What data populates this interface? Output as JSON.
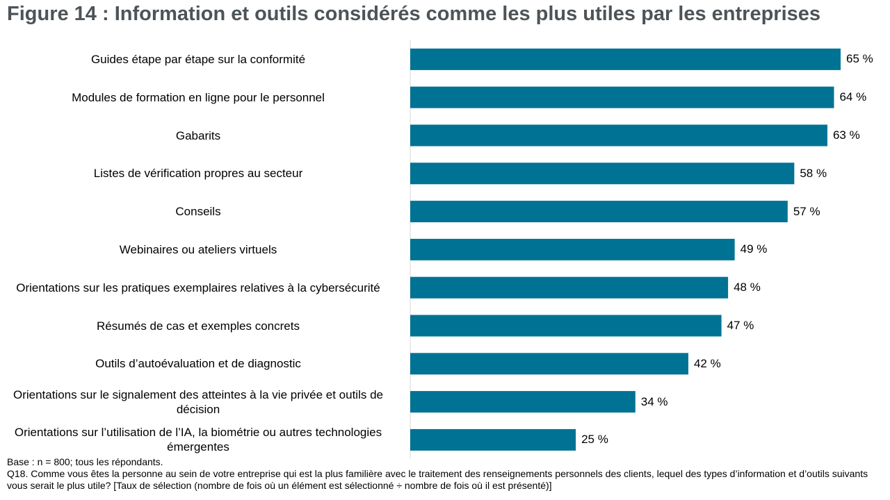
{
  "chart_data": {
    "type": "bar",
    "orientation": "horizontal",
    "title": "Figure 14 : Information et outils considérés comme les plus utiles par les entreprises",
    "categories": [
      "Guides étape par étape sur la conformité",
      "Modules de formation en ligne pour le personnel",
      "Gabarits",
      "Listes de vérification propres au secteur",
      "Conseils",
      "Webinaires ou ateliers virtuels",
      "Orientations sur les pratiques exemplaires relatives à la cybersécurité",
      "Résumés de cas et exemples concrets",
      "Outils d’autoévaluation et de diagnostic",
      "Orientations sur le signalement des atteintes à la vie privée et outils de décision",
      "Orientations sur l’utilisation de l’IA, la biométrie ou autres technologies émergentes"
    ],
    "values": [
      65,
      64,
      63,
      58,
      57,
      49,
      48,
      47,
      42,
      34,
      25
    ],
    "value_labels": [
      "65 %",
      "64 %",
      "63 %",
      "58 %",
      "57 %",
      "49 %",
      "48 %",
      "47 %",
      "42 %",
      "34 %",
      "25 %"
    ],
    "xlim": [
      0,
      65
    ],
    "grid": false,
    "bar_color": "#007394",
    "axis_color": "#d9d9d9"
  },
  "footer": {
    "base": "Base : n = 800; tous les répondants.",
    "question": "Q18. Comme vous êtes la personne au sein de votre entreprise qui est la plus familière avec le traitement des renseignements personnels des clients, lequel des types d’information et d’outils suivants vous serait le plus utile? [Taux de sélection (nombre de fois où un élément est sélectionné ÷ nombre de fois où il est présenté)]"
  }
}
